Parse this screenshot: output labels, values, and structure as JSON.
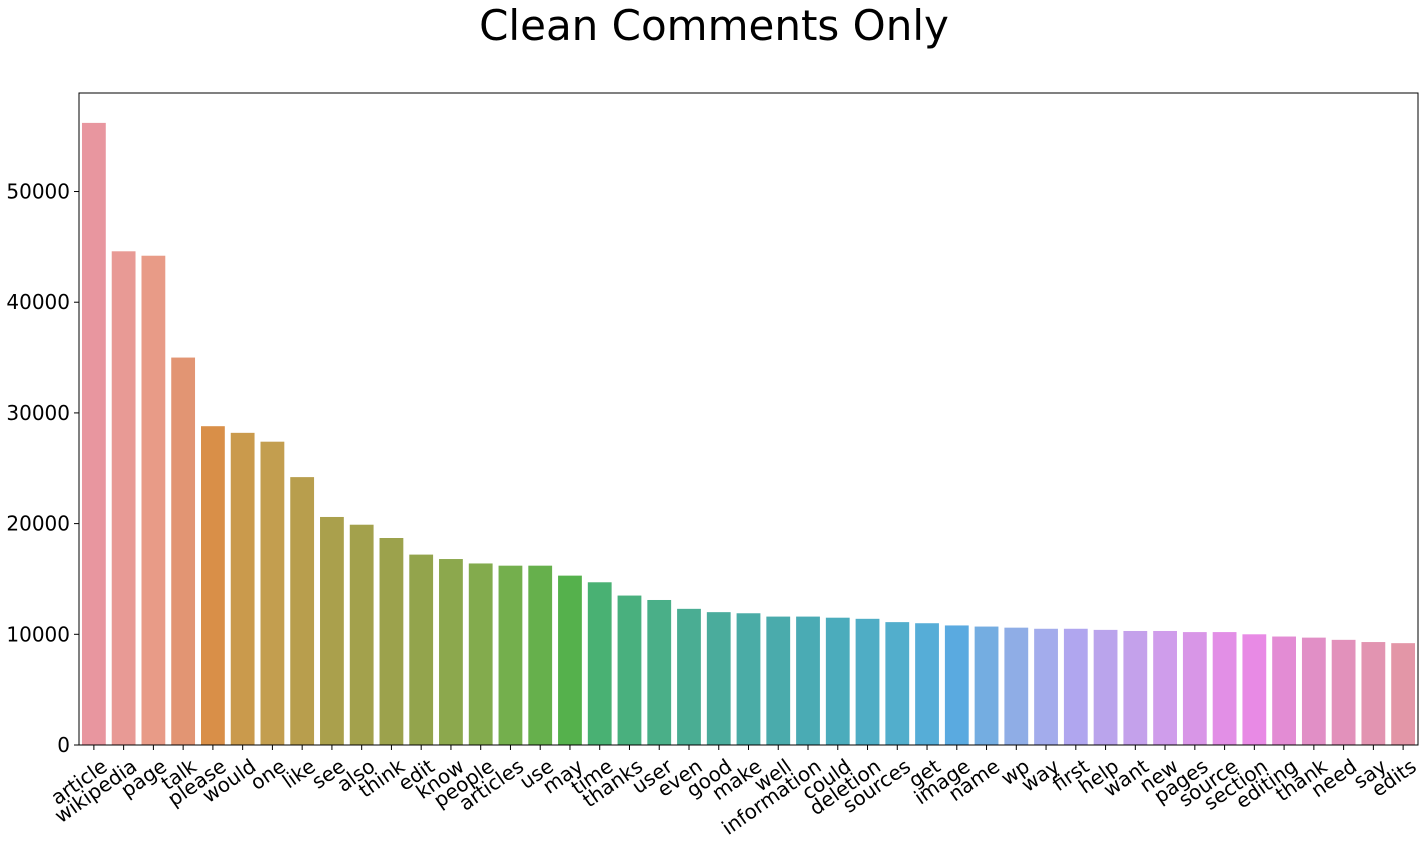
{
  "chart_data": {
    "type": "bar",
    "title": "Clean Comments Only",
    "xlabel": "",
    "ylabel": "",
    "ylim": [
      0,
      58900
    ],
    "yticks": [
      0,
      10000,
      20000,
      30000,
      40000,
      50000
    ],
    "grid": false,
    "legend": "none",
    "categories": [
      "article",
      "wikipedia",
      "page",
      "talk",
      "please",
      "would",
      "one",
      "like",
      "see",
      "also",
      "think",
      "edit",
      "know",
      "people",
      "articles",
      "use",
      "may",
      "time",
      "thanks",
      "user",
      "even",
      "good",
      "make",
      "well",
      "information",
      "could",
      "deletion",
      "sources",
      "get",
      "image",
      "name",
      "wp",
      "way",
      "first",
      "help",
      "want",
      "new",
      "pages",
      "source",
      "section",
      "editing",
      "thank",
      "need",
      "say",
      "edits"
    ],
    "values": [
      56200,
      44600,
      44200,
      35000,
      28800,
      28200,
      27400,
      24200,
      20600,
      19900,
      18700,
      17200,
      16800,
      16400,
      16200,
      16200,
      15300,
      14700,
      13500,
      13100,
      12300,
      12000,
      11900,
      11600,
      11600,
      11500,
      11400,
      11100,
      11000,
      10800,
      10700,
      10600,
      10500,
      10500,
      10400,
      10300,
      10300,
      10200,
      10200,
      10000,
      9800,
      9700,
      9500,
      9300,
      9200
    ],
    "colors": [
      "#e8969f",
      "#e89a95",
      "#e89b87",
      "#e29573",
      "#d98f48",
      "#ca9a4c",
      "#c39e4f",
      "#b89e4d",
      "#aaa04c",
      "#a3a14c",
      "#9ca24c",
      "#93a44c",
      "#8ca84d",
      "#83ab4d",
      "#74af4d",
      "#66b04c",
      "#55b14c",
      "#49b173",
      "#49b07e",
      "#4aaf88",
      "#4aad93",
      "#4aac9c",
      "#4aaca6",
      "#4aabac",
      "#4aabb4",
      "#4bacbc",
      "#4fadc5",
      "#52aecc",
      "#56add7",
      "#5aaae0",
      "#74ade1",
      "#8fade6",
      "#a3acec",
      "#b0a6ef",
      "#baa4ec",
      "#c4a1eb",
      "#cf9deb",
      "#d896e7",
      "#e28fe6",
      "#e88ae5",
      "#e38cd4",
      "#e18fc6",
      "#e291bb",
      "#e294b1",
      "#e396a7"
    ]
  }
}
